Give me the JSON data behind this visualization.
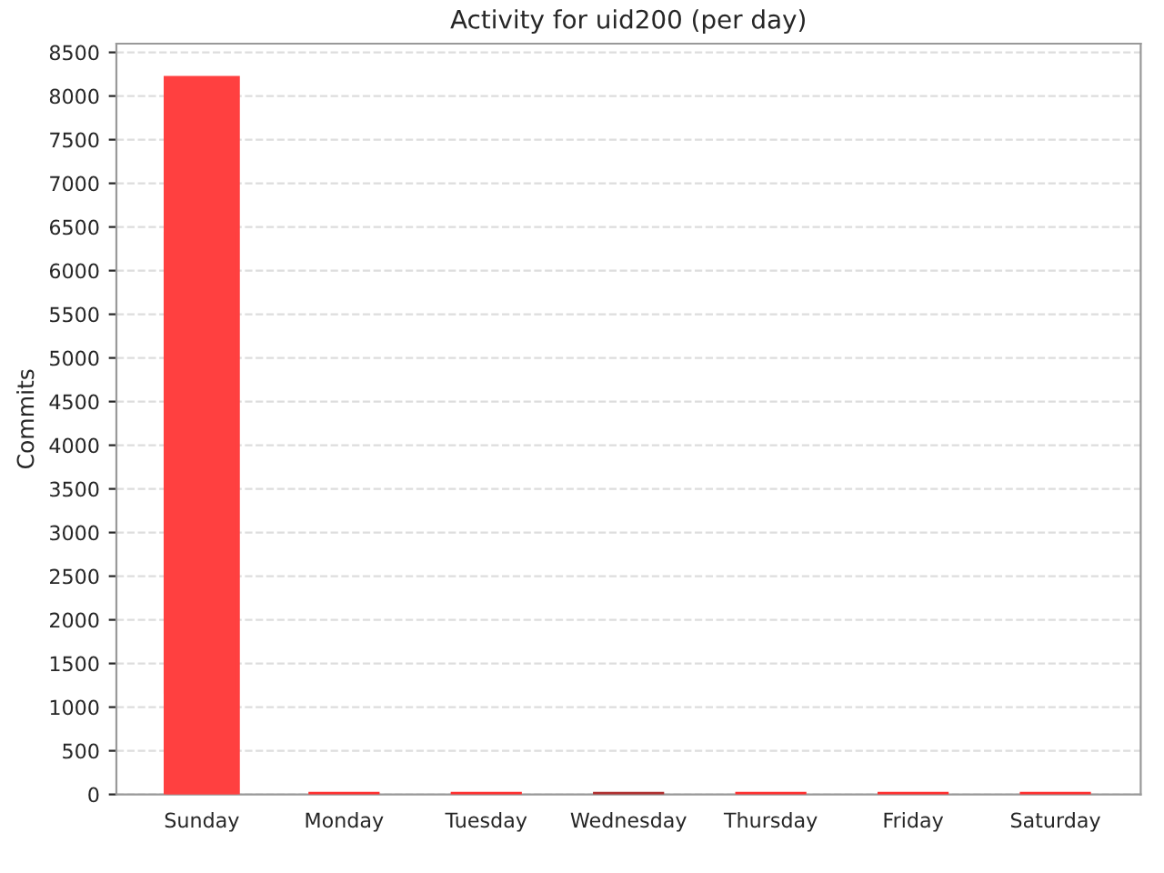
{
  "chart_data": {
    "type": "bar",
    "title": "Activity for uid200 (per day)",
    "ylabel": "Commits",
    "categories": [
      "Sunday",
      "Monday",
      "Tuesday",
      "Wednesday",
      "Thursday",
      "Friday",
      "Saturday"
    ],
    "values": [
      8200,
      0,
      0,
      0,
      0,
      0,
      0
    ],
    "colors": [
      "#ff4040",
      "#ff3030",
      "#ff3030",
      "#b03030",
      "#ff3030",
      "#ff3030",
      "#ff3030"
    ],
    "ylim": [
      0,
      8600
    ],
    "yticks": [
      0,
      500,
      1000,
      1500,
      2000,
      2500,
      3000,
      3500,
      4000,
      4500,
      5000,
      5500,
      6000,
      6500,
      7000,
      7500,
      8000,
      8500
    ],
    "grid": "y"
  }
}
